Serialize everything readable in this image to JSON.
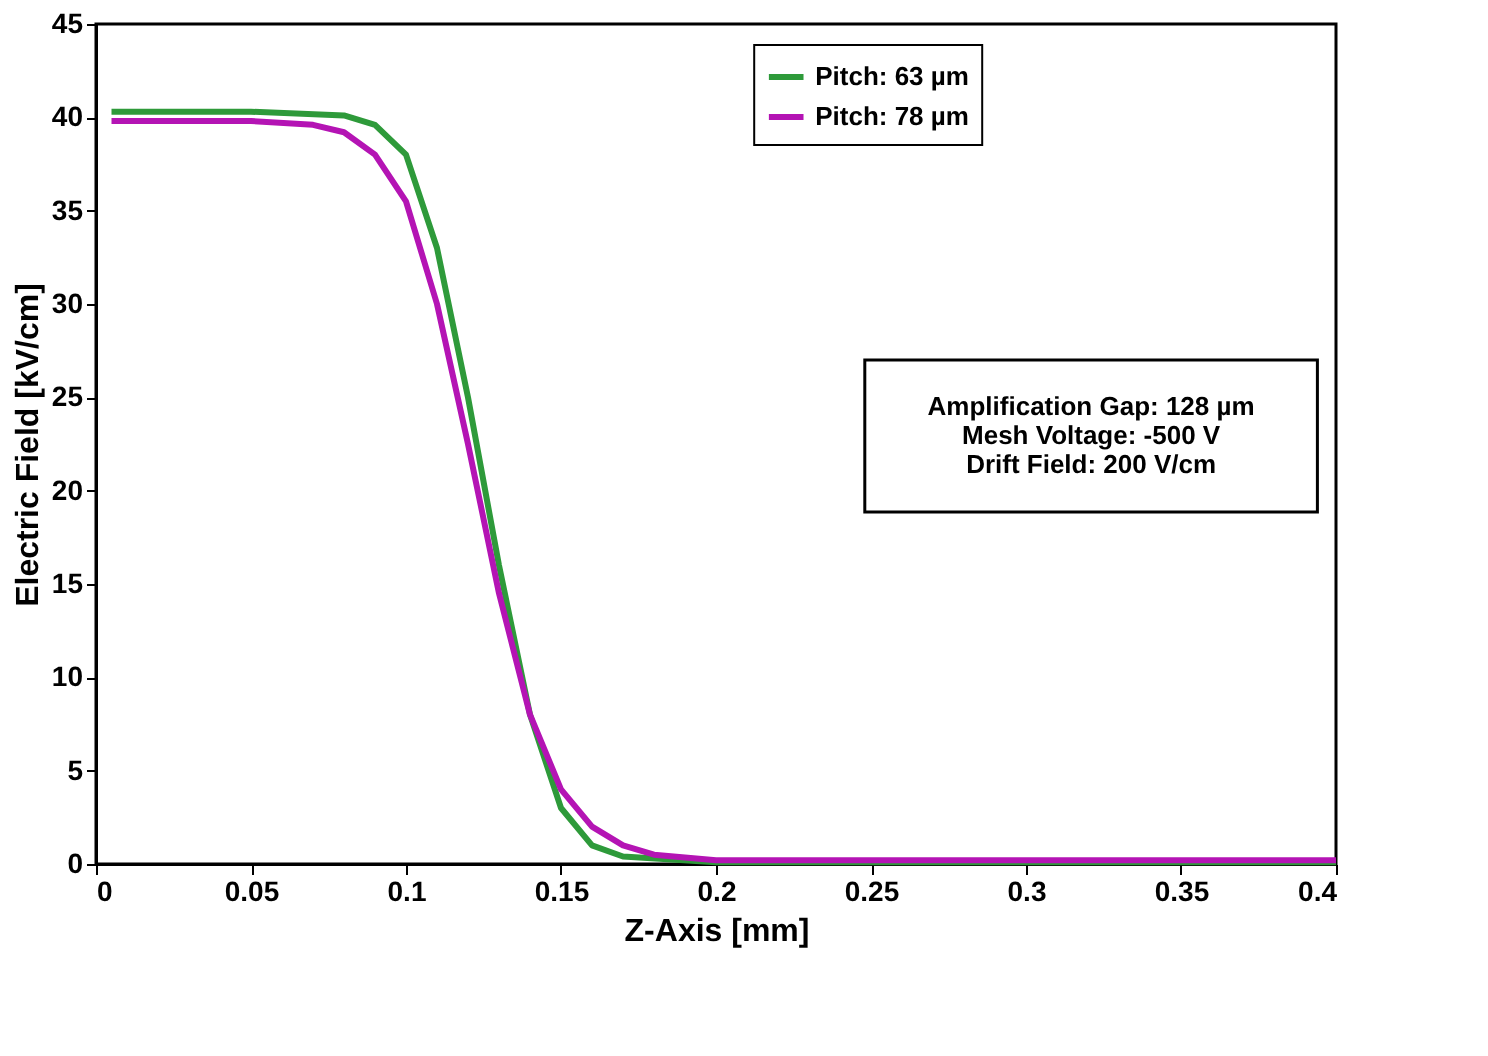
{
  "chart_data": {
    "type": "line",
    "xlabel": "Z-Axis [mm]",
    "ylabel": "Electric Field [kV/cm]",
    "xlim": [
      0,
      0.4
    ],
    "ylim": [
      0,
      45
    ],
    "xticks": [
      0,
      0.05,
      0.1,
      0.15,
      0.2,
      0.25,
      0.3,
      0.35,
      0.4
    ],
    "yticks": [
      0,
      5,
      10,
      15,
      20,
      25,
      30,
      35,
      40,
      45
    ],
    "grid": false,
    "legend": "top right",
    "line_style": "solid",
    "marker": "none",
    "annotations": [
      "Amplification Gap: 128 µm",
      "Mesh Voltage: -500 V",
      "Drift Field: 200 V/cm"
    ],
    "series": [
      {
        "name": "Pitch: 63 µm",
        "color": "#2e9a3a",
        "x": [
          0.005,
          0.05,
          0.08,
          0.09,
          0.1,
          0.11,
          0.12,
          0.13,
          0.14,
          0.15,
          0.16,
          0.17,
          0.2,
          0.4
        ],
        "values": [
          40.3,
          40.3,
          40.1,
          39.6,
          38,
          33,
          25,
          16,
          8,
          3,
          1,
          0.4,
          0.1,
          0.1
        ]
      },
      {
        "name": "Pitch: 78 µm",
        "color": "#b414b4",
        "x": [
          0.005,
          0.05,
          0.07,
          0.08,
          0.09,
          0.1,
          0.11,
          0.12,
          0.13,
          0.14,
          0.15,
          0.16,
          0.17,
          0.18,
          0.2,
          0.4
        ],
        "values": [
          39.8,
          39.8,
          39.6,
          39.2,
          38,
          35.5,
          30,
          22.5,
          14.5,
          8,
          4,
          2,
          1,
          0.5,
          0.2,
          0.2
        ]
      }
    ]
  }
}
